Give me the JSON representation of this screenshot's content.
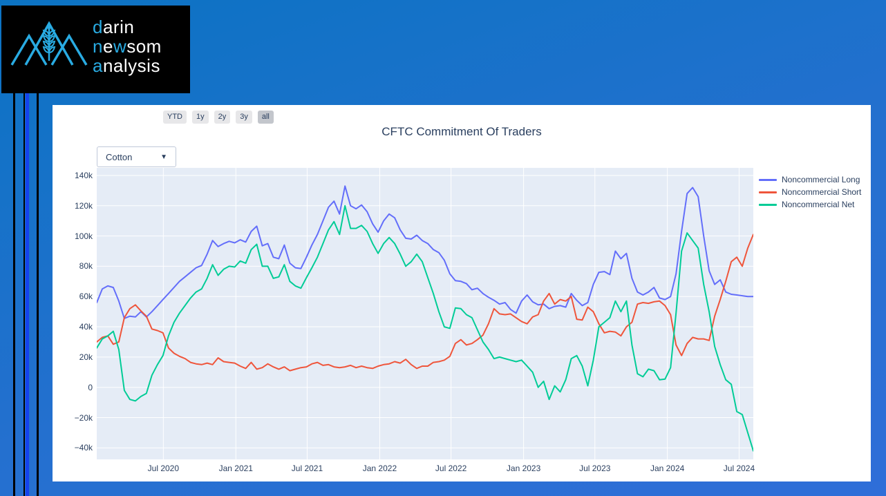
{
  "logo": {
    "word1_accent": "d",
    "word1_rest": "arin",
    "word2_a": "n",
    "word2_b": "e",
    "word2_c": "w",
    "word2_d": "som",
    "word3_accent": "a",
    "word3_rest": "nalysis",
    "accent_color": "#29abe2"
  },
  "colors": {
    "background_gradient": [
      "#0b73c3",
      "#2f6ed8"
    ],
    "stripe_blue": "#1543ed",
    "panel": "#ffffff",
    "plot_background": "#e5ecf6",
    "axis_text": "#2a3f5f"
  },
  "toolbar": {
    "buttons": [
      {
        "label": "YTD",
        "active": false
      },
      {
        "label": "1y",
        "active": false
      },
      {
        "label": "2y",
        "active": false
      },
      {
        "label": "3y",
        "active": false
      },
      {
        "label": "all",
        "active": true
      }
    ]
  },
  "controls": {
    "commodity_select": {
      "value": "Cotton",
      "arrow_icon": "▼"
    }
  },
  "chart_data": {
    "type": "line",
    "title": "CFTC Commitment Of Traders",
    "unit": "contracts, thousands (values_k = k contracts)",
    "grid": true,
    "legend_position": "right-outside-top",
    "x_domain": {
      "start_date": "2020-01-14",
      "step_days": 14,
      "points": 120,
      "end_date": "2024-08-06"
    },
    "xaxis": {
      "ticks": [
        {
          "label": "Jul 2020",
          "f": 0.1014
        },
        {
          "label": "Jan 2021",
          "f": 0.2119
        },
        {
          "label": "Jul 2021",
          "f": 0.3205
        },
        {
          "label": "Jan 2022",
          "f": 0.431
        },
        {
          "label": "Jul 2022",
          "f": 0.5396
        },
        {
          "label": "Jan 2023",
          "f": 0.6501
        },
        {
          "label": "Jul 2023",
          "f": 0.7587
        },
        {
          "label": "Jan 2024",
          "f": 0.8691
        },
        {
          "label": "Jul 2024",
          "f": 0.9784
        }
      ]
    },
    "yaxis": {
      "vmax": 145,
      "vmin": -47.6,
      "ticks": [
        {
          "label": "140k",
          "v": 140
        },
        {
          "label": "120k",
          "v": 120
        },
        {
          "label": "100k",
          "v": 100
        },
        {
          "label": "80k",
          "v": 80
        },
        {
          "label": "60k",
          "v": 60
        },
        {
          "label": "40k",
          "v": 40
        },
        {
          "label": "20k",
          "v": 20
        },
        {
          "label": "0",
          "v": 0
        },
        {
          "label": "−20k",
          "v": -20
        },
        {
          "label": "−40k",
          "v": -40
        }
      ]
    },
    "series": [
      {
        "name": "Noncommercial Long",
        "color": "#636efa",
        "values_k": [
          56,
          65,
          67,
          66,
          57,
          45.5,
          47,
          46.5,
          50,
          46.5,
          50,
          54,
          58,
          62,
          66,
          70,
          73,
          76,
          79,
          80.5,
          88,
          97,
          93,
          95,
          96.5,
          95.5,
          97.5,
          96,
          103,
          106.5,
          93.5,
          95,
          86,
          85,
          94,
          82,
          79,
          78.5,
          86,
          94,
          101,
          110,
          119,
          123,
          114.5,
          133,
          120,
          118,
          120.5,
          116,
          108,
          102.5,
          110,
          114.5,
          112,
          104,
          98.5,
          98,
          100.5,
          97,
          95,
          91,
          89,
          84,
          75,
          70.5,
          70,
          68.5,
          64.5,
          65.5,
          62,
          59.5,
          57.5,
          55,
          56,
          51.5,
          49,
          57,
          61,
          56.5,
          54.5,
          55,
          52,
          53.5,
          54,
          53,
          62,
          57.5,
          54,
          56,
          68,
          76,
          76.5,
          74.5,
          90,
          85,
          88.5,
          72,
          63,
          61,
          63,
          66,
          59,
          58,
          60,
          75,
          103,
          128,
          132,
          126,
          100,
          77,
          68,
          71,
          63,
          61.5,
          61,
          60.5,
          60,
          60
        ]
      },
      {
        "name": "Noncommercial Short",
        "color": "#ef553b",
        "values_k": [
          30,
          33,
          34,
          28.5,
          30,
          46,
          52,
          54.5,
          50.5,
          47,
          38.5,
          37.5,
          36,
          26,
          22.5,
          20.5,
          19,
          16.5,
          15.5,
          15,
          16,
          15,
          19.5,
          17,
          16.5,
          16,
          14,
          12.5,
          16.5,
          12,
          13,
          15.5,
          13.5,
          12,
          13.5,
          11,
          12,
          13,
          13.5,
          15.5,
          16.5,
          14.5,
          15,
          13.5,
          13,
          13.5,
          14.5,
          13,
          14,
          13,
          12.5,
          14,
          15,
          15.5,
          17,
          16,
          18.5,
          15,
          12.5,
          14,
          14,
          16.5,
          17,
          18,
          20.5,
          29,
          31.5,
          28,
          29,
          31.5,
          34.5,
          42,
          52,
          48.5,
          48,
          48.5,
          46,
          43.5,
          42,
          46.5,
          48,
          57,
          62,
          55,
          58,
          57,
          60,
          45,
          44.5,
          53,
          50,
          42,
          36,
          37,
          36.5,
          34,
          40,
          43,
          55,
          56,
          55.5,
          56.5,
          57,
          54,
          48,
          28,
          21,
          29,
          33,
          32,
          32,
          31,
          47,
          58,
          70,
          83,
          86,
          80,
          92,
          101
        ]
      },
      {
        "name": "Noncommercial Net",
        "color": "#00cc96",
        "values_k": [
          26,
          32,
          34,
          37,
          25,
          -2,
          -8,
          -9,
          -6,
          -4,
          8,
          15,
          21,
          34,
          43,
          49,
          54,
          59,
          63,
          65,
          72,
          81,
          74,
          78,
          80,
          79.5,
          83.5,
          82,
          91,
          94.5,
          80,
          80,
          72,
          73,
          81,
          70,
          67,
          65.5,
          72.5,
          79,
          86,
          95,
          104,
          109.5,
          101,
          120,
          105,
          105,
          107,
          103,
          95,
          88.5,
          95,
          99,
          95,
          88,
          80,
          83,
          88,
          83,
          72.5,
          62,
          50,
          40,
          39,
          52.5,
          52,
          48,
          46,
          38,
          30,
          25,
          19,
          20,
          19,
          18,
          17,
          18,
          14,
          10,
          0,
          4,
          -8,
          1,
          -3,
          5,
          19,
          21,
          14,
          1,
          18,
          40,
          43,
          46,
          57,
          50,
          57,
          28,
          9,
          7,
          12,
          11,
          5,
          5.5,
          13,
          49,
          90,
          102,
          97,
          92,
          68,
          50,
          27,
          15,
          5,
          2,
          -16,
          -18,
          -30,
          -42
        ]
      }
    ]
  }
}
